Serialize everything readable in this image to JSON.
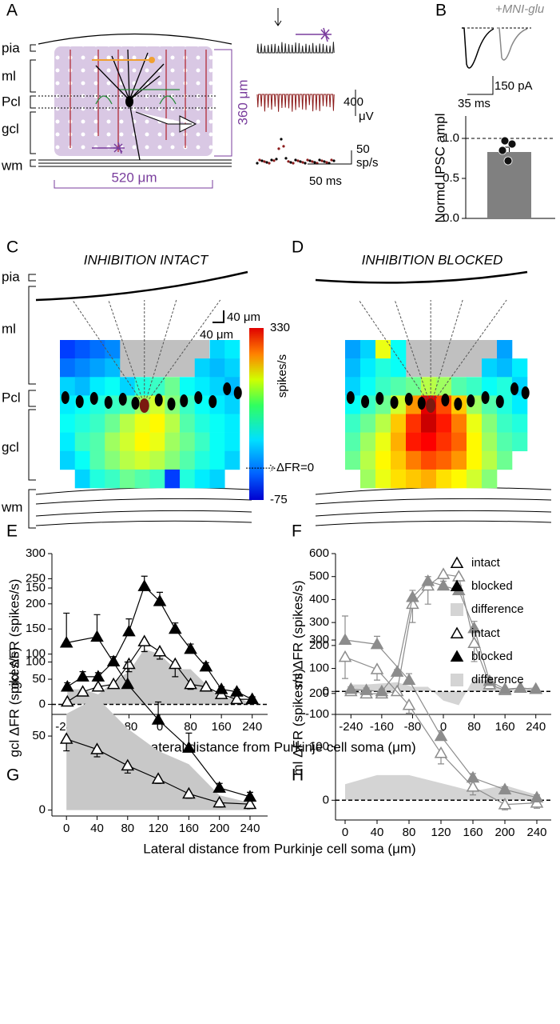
{
  "panel_labels": [
    "A",
    "B",
    "C",
    "D",
    "E",
    "F",
    "G",
    "H"
  ],
  "schematic": {
    "layers": [
      "pia",
      "ml",
      "Pcl",
      "gcl",
      "wm"
    ],
    "depth_scale": "360 μm",
    "width_scale": "520 μm",
    "voltage_scale": "400",
    "voltage_unit": "μV",
    "rate_scale": "50",
    "rate_unit": "sp/s",
    "time_scale": "50 ms"
  },
  "ipsc": {
    "condition": "+MNI-glu",
    "current_scale": "150 pA",
    "time_scale": "35 ms"
  },
  "maps": {
    "layers": [
      "pia",
      "ml",
      "Pcl",
      "gcl",
      "wm"
    ],
    "depth_scale": "40 μm",
    "width_scale": "40 μm"
  },
  "chart_data": [
    {
      "type": "bar",
      "ylabel": "Normd IPSC ampl",
      "values": [
        0.83
      ],
      "errors": [
        0.06
      ],
      "points": [
        0.97,
        0.93,
        0.85,
        0.72
      ],
      "color": "#808080",
      "ylim": [
        0,
        1.28
      ],
      "yticks": [
        {
          "value": 0,
          "label": "0.0"
        },
        {
          "value": 0.5,
          "label": "0.5"
        },
        {
          "value": 1,
          "label": "1.0"
        }
      ],
      "reference_line": 1
    },
    {
      "type": "heatmap",
      "title": "INHIBITION INTACT",
      "zlim": [
        -75,
        330
      ],
      "zticks": [
        330,
        -75
      ],
      "colorbar_label": "spikes/s",
      "annotation": {
        "text": "ΔFR=0",
        "value": 0
      },
      "values": [
        [
          0,
          10,
          20,
          30,
          null,
          null,
          null,
          null,
          null,
          null,
          60,
          70
        ],
        [
          20,
          30,
          40,
          50,
          null,
          null,
          null,
          null,
          null,
          60,
          50,
          60
        ],
        [
          60,
          50,
          70,
          80,
          60,
          90,
          100,
          120,
          80,
          70,
          60,
          50
        ],
        [
          70,
          80,
          90,
          100,
          110,
          140,
          160,
          130,
          100,
          80,
          70,
          60
        ],
        [
          80,
          90,
          100,
          120,
          150,
          170,
          180,
          150,
          110,
          90,
          80,
          70
        ],
        [
          70,
          100,
          110,
          140,
          160,
          180,
          170,
          140,
          120,
          100,
          80,
          70
        ],
        [
          60,
          80,
          110,
          130,
          150,
          160,
          150,
          130,
          110,
          90,
          80,
          60
        ],
        [
          null,
          60,
          90,
          100,
          120,
          110,
          100,
          0,
          90,
          70,
          60,
          null
        ]
      ]
    },
    {
      "type": "heatmap",
      "title": "INHIBITION BLOCKED",
      "zlim": [
        -75,
        330
      ],
      "values": [
        [
          40,
          60,
          170,
          80,
          null,
          null,
          null,
          null,
          null,
          null,
          40,
          null
        ],
        [
          50,
          70,
          90,
          80,
          null,
          null,
          null,
          null,
          null,
          60,
          50,
          70
        ],
        [
          60,
          80,
          100,
          110,
          120,
          150,
          140,
          110,
          100,
          80,
          90,
          60
        ],
        [
          80,
          100,
          120,
          160,
          220,
          290,
          250,
          200,
          140,
          110,
          90,
          70
        ],
        [
          100,
          120,
          150,
          200,
          260,
          300,
          270,
          230,
          170,
          130,
          100,
          90
        ],
        [
          110,
          140,
          170,
          210,
          270,
          280,
          260,
          240,
          180,
          140,
          110,
          100
        ],
        [
          120,
          150,
          180,
          200,
          230,
          250,
          240,
          220,
          180,
          150,
          120,
          null
        ],
        [
          null,
          140,
          170,
          190,
          200,
          210,
          190,
          180,
          160,
          130,
          null,
          null
        ]
      ]
    },
    {
      "type": "line",
      "ylabel": "gcl ΔFR (spikes/s)",
      "xlabel": "Lateral distance from Purkinje cell soma (μm)",
      "x": [
        -240,
        -200,
        -160,
        -120,
        -80,
        -40,
        0,
        40,
        80,
        120,
        160,
        200,
        240
      ],
      "xlim": [
        -280,
        280
      ],
      "xticks": [
        -240,
        -160,
        -80,
        0,
        80,
        160,
        240
      ],
      "ylim": [
        -20,
        300
      ],
      "yticks": [
        0,
        50,
        100,
        150,
        200,
        250,
        300
      ],
      "zero_line": true,
      "series": [
        {
          "color": "#000000",
          "marker": "open",
          "error_side": "down",
          "values": [
            5,
            25,
            35,
            40,
            80,
            125,
            105,
            80,
            40,
            35,
            20,
            10,
            10
          ],
          "errors": [
            3,
            5,
            5,
            5,
            15,
            20,
            15,
            25,
            10,
            8,
            8,
            5,
            5
          ]
        },
        {
          "color": "#000000",
          "marker": "filled",
          "error_side": "up",
          "values": [
            35,
            55,
            55,
            85,
            145,
            235,
            205,
            150,
            110,
            75,
            30,
            25,
            10
          ],
          "errors": [
            8,
            10,
            8,
            10,
            25,
            20,
            18,
            12,
            10,
            8,
            5,
            5,
            5
          ]
        },
        {
          "color": "#c8c8c8",
          "style": "area",
          "values": [
            30,
            30,
            20,
            45,
            65,
            110,
            100,
            70,
            70,
            40,
            10,
            15,
            0
          ]
        }
      ]
    },
    {
      "type": "line",
      "ylabel": "ml ΔFR (spikes/s)",
      "x": [
        -240,
        -200,
        -160,
        -120,
        -80,
        -40,
        0,
        40,
        80,
        120,
        160,
        200,
        240
      ],
      "xlim": [
        -280,
        280
      ],
      "xticks": [
        -240,
        -160,
        -80,
        0,
        80,
        160,
        240
      ],
      "ylim": [
        -100,
        600
      ],
      "yticks": [
        -100,
        0,
        100,
        200,
        300,
        400,
        500,
        600
      ],
      "zero_line": true,
      "legend": "upper right",
      "series": [
        {
          "name": "intact",
          "color": "#8c8c8c",
          "marker": "open",
          "error_side": "down",
          "values": [
            0,
            -10,
            -10,
            0,
            380,
            460,
            510,
            500,
            210,
            30,
            5,
            15,
            10
          ],
          "errors": [
            10,
            10,
            15,
            10,
            80,
            80,
            20,
            15,
            80,
            20,
            10,
            5,
            5
          ]
        },
        {
          "name": "blocked",
          "color": "#8c8c8c",
          "marker": "filled",
          "error_side": "up",
          "values": [
            10,
            5,
            0,
            85,
            410,
            480,
            460,
            440,
            275,
            45,
            10,
            15,
            10
          ],
          "errors": [
            10,
            10,
            10,
            10,
            30,
            20,
            20,
            20,
            30,
            15,
            5,
            5,
            5
          ]
        },
        {
          "name": "difference",
          "color": "#d4d4d4",
          "style": "area",
          "values": [
            30,
            30,
            35,
            40,
            20,
            20,
            -40,
            -60,
            60,
            40,
            0,
            10,
            20
          ]
        }
      ]
    },
    {
      "type": "line",
      "ylabel": "gcl ΔFR (spikes/s)",
      "xlabel": "Lateral distance from Purkinje cell soma (μm)",
      "x": [
        0,
        40,
        80,
        120,
        160,
        200,
        240
      ],
      "xlim": [
        -19,
        263
      ],
      "xticks": [
        0,
        40,
        80,
        120,
        160,
        200,
        240
      ],
      "ylim": [
        -4,
        150
      ],
      "yticks": [
        0,
        50,
        100,
        150
      ],
      "series": [
        {
          "color": "#000000",
          "marker": "open",
          "error_side": "down",
          "values": [
            48,
            41,
            30,
            21,
            11,
            5,
            4
          ],
          "errors": [
            8,
            5,
            5,
            3,
            3,
            3,
            3
          ]
        },
        {
          "color": "#000000",
          "marker": "filled",
          "error_side": "up",
          "values": [
            113,
            117,
            85,
            61,
            42,
            15,
            9
          ],
          "errors": [
            20,
            15,
            15,
            12,
            10,
            3,
            3
          ]
        },
        {
          "color": "#c8c8c8",
          "style": "area",
          "values": [
            65,
            76,
            55,
            40,
            31,
            10,
            5
          ]
        }
      ]
    },
    {
      "type": "line",
      "ylabel": "ml ΔFR (spikes/s)",
      "x": [
        0,
        40,
        80,
        120,
        160,
        200,
        240
      ],
      "xlim": [
        -12,
        258
      ],
      "xticks": [
        0,
        40,
        80,
        120,
        160,
        200,
        240
      ],
      "ylim": [
        -37,
        330
      ],
      "yticks": [
        0,
        100,
        200,
        300
      ],
      "zero_line": true,
      "legend": "upper right",
      "series": [
        {
          "name": "intact",
          "color": "#8c8c8c",
          "marker": "open",
          "error_side": "down",
          "values": [
            268,
            245,
            178,
            88,
            25,
            -8,
            -5
          ],
          "errors": [
            40,
            20,
            15,
            20,
            15,
            10,
            10
          ]
        },
        {
          "name": "blocked",
          "color": "#8c8c8c",
          "marker": "filled",
          "error_side": "up",
          "values": [
            300,
            292,
            225,
            120,
            42,
            20,
            5
          ],
          "errors": [
            45,
            15,
            12,
            10,
            8,
            5,
            5
          ]
        },
        {
          "name": "difference",
          "color": "#d4d4d4",
          "style": "area",
          "values": [
            30,
            47,
            47,
            32,
            17,
            28,
            10
          ]
        }
      ]
    }
  ]
}
